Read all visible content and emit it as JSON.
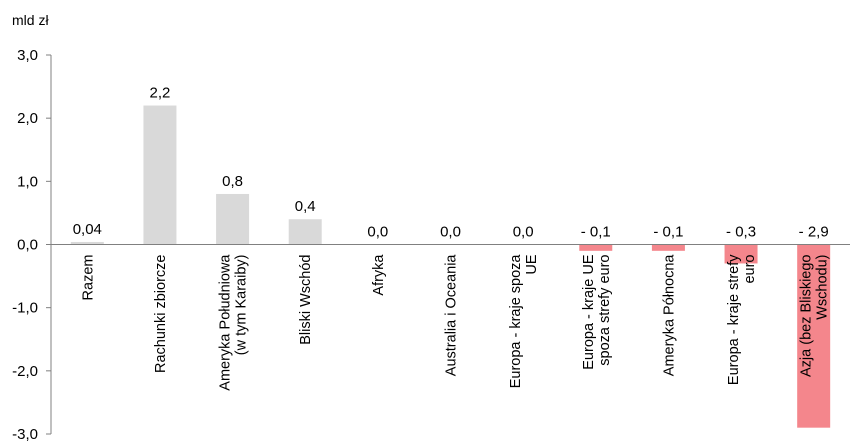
{
  "chart_data": {
    "type": "bar",
    "unit_label": "mld zł",
    "categories": [
      "Razem",
      "Rachunki zbiorcze",
      "Ameryka Południowa (w tym Karaiby)",
      "Bliski Wschód",
      "Afryka",
      "Australia i Oceania",
      "Europa - kraje spoza UE",
      "Europa - kraje UE spoza strefy euro",
      "Ameryka Północna",
      "Europa - kraje strefy euro",
      "Azja (bez Bliskiego Wschodu)"
    ],
    "category_lines": [
      [
        "Razem"
      ],
      [
        "Rachunki zbiorcze"
      ],
      [
        "Ameryka Południowa",
        "(w tym Karaiby)"
      ],
      [
        "Bliski Wschód"
      ],
      [
        "Afryka"
      ],
      [
        "Australia i Oceania"
      ],
      [
        "Europa - kraje spoza",
        "UE"
      ],
      [
        "Europa - kraje UE",
        "spoza strefy euro"
      ],
      [
        "Ameryka Północna"
      ],
      [
        "Europa - kraje strefy",
        "euro"
      ],
      [
        "Azja (bez Bliskiego",
        "Wschodu)"
      ]
    ],
    "values": [
      0.04,
      2.2,
      0.8,
      0.4,
      0.0,
      0.0,
      0.0,
      -0.1,
      -0.1,
      -0.3,
      -2.9
    ],
    "data_labels": [
      "0,04",
      "2,2",
      "0,8",
      "0,4",
      "0,0",
      "0,0",
      "0,0",
      "- 0,1",
      "- 0,1",
      "- 0,3",
      "- 2,9"
    ],
    "ylim": [
      -3.0,
      3.0
    ],
    "y_ticks": [
      3.0,
      2.0,
      1.0,
      0.0,
      -1.0,
      -2.0,
      -3.0
    ],
    "y_tick_labels": [
      "3,0",
      "2,0",
      "1,0",
      "0,0",
      "-1,0",
      "-2,0",
      "-3,0"
    ],
    "colors": {
      "positive": "#d9d9d9",
      "negative": "#f4868c",
      "axis": "#808080"
    },
    "grid": false,
    "legend": "none"
  }
}
